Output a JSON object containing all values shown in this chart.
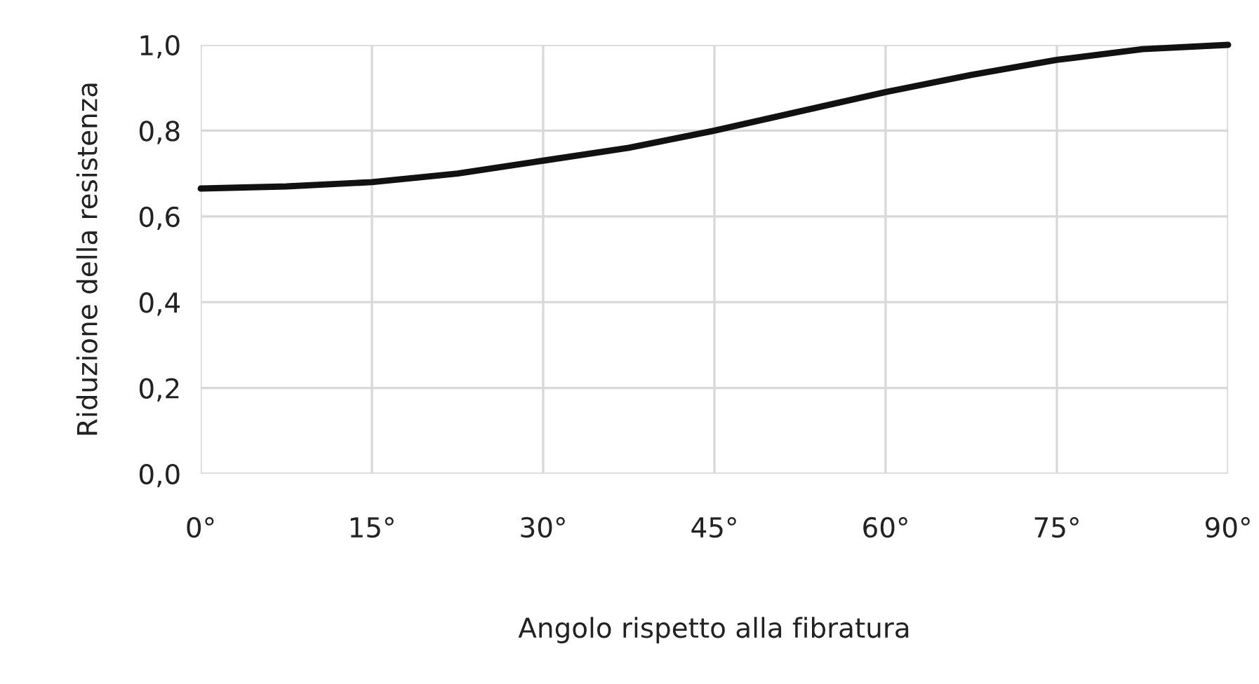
{
  "chart_data": {
    "type": "line",
    "xlabel": "Angolo rispetto alla fibratura",
    "ylabel": "Riduzione della resistenza",
    "x": [
      0,
      7.5,
      15,
      22.5,
      30,
      37.5,
      45,
      52.5,
      60,
      67.5,
      75,
      82.5,
      90
    ],
    "series": [
      {
        "color": "#111111",
        "values": [
          0.665,
          0.67,
          0.68,
          0.7,
          0.73,
          0.76,
          0.8,
          0.845,
          0.89,
          0.93,
          0.965,
          0.99,
          1.0
        ]
      }
    ],
    "xlim": [
      0,
      90
    ],
    "ylim": [
      0,
      1
    ],
    "xticks": [
      {
        "value": 0,
        "label": "0°"
      },
      {
        "value": 15,
        "label": "15°"
      },
      {
        "value": 30,
        "label": "30°"
      },
      {
        "value": 45,
        "label": "45°"
      },
      {
        "value": 60,
        "label": "60°"
      },
      {
        "value": 75,
        "label": "75°"
      },
      {
        "value": 90,
        "label": "90°"
      }
    ],
    "yticks": [
      {
        "value": 0,
        "label": "0,0"
      },
      {
        "value": 0.2,
        "label": "0,2"
      },
      {
        "value": 0.4,
        "label": "0,4"
      },
      {
        "value": 0.6,
        "label": "0,6"
      },
      {
        "value": 0.8,
        "label": "0,8"
      },
      {
        "value": 1.0,
        "label": "1,0"
      }
    ],
    "grid": true,
    "line_style": "solid",
    "marker": "none"
  }
}
